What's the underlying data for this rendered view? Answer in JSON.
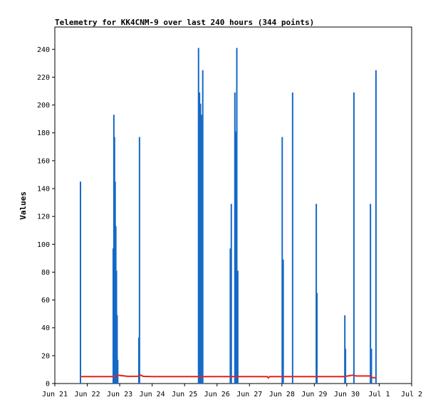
{
  "chart_data": {
    "type": "bar",
    "title": "Telemetry for KK4CNM-9 over last 240 hours (344 points)",
    "xlabel": "",
    "ylabel": "Values",
    "x_axis": {
      "unit": "days since Jun 21 00:00",
      "range": [
        0,
        11
      ],
      "ticks": [
        {
          "label": "Jun 21",
          "day": 0
        },
        {
          "label": "Jun 22",
          "day": 1
        },
        {
          "label": "Jun 23",
          "day": 2
        },
        {
          "label": "Jun 24",
          "day": 3
        },
        {
          "label": "Jun 25",
          "day": 4
        },
        {
          "label": "Jun 26",
          "day": 5
        },
        {
          "label": "Jun 27",
          "day": 6
        },
        {
          "label": "Jun 28",
          "day": 7
        },
        {
          "label": "Jun 29",
          "day": 8
        },
        {
          "label": "Jun 30",
          "day": 9
        },
        {
          "label": "Jul 1",
          "day": 10
        },
        {
          "label": "Jul 2",
          "day": 11
        }
      ]
    },
    "y_axis": {
      "range": [
        0,
        256
      ],
      "ticks": [
        0,
        20,
        40,
        60,
        80,
        100,
        120,
        140,
        160,
        180,
        200,
        220,
        240
      ]
    },
    "grid": false,
    "series": [
      {
        "kind": "bar",
        "color": "#1569c7",
        "points": [
          {
            "x": 0.79,
            "y": 145
          },
          {
            "x": 1.8,
            "y": 97
          },
          {
            "x": 1.82,
            "y": 193
          },
          {
            "x": 1.84,
            "y": 177
          },
          {
            "x": 1.86,
            "y": 145
          },
          {
            "x": 1.88,
            "y": 113
          },
          {
            "x": 1.9,
            "y": 81
          },
          {
            "x": 1.92,
            "y": 49
          },
          {
            "x": 1.94,
            "y": 17
          },
          {
            "x": 2.59,
            "y": 33
          },
          {
            "x": 2.61,
            "y": 177
          },
          {
            "x": 4.43,
            "y": 241
          },
          {
            "x": 4.46,
            "y": 209
          },
          {
            "x": 4.49,
            "y": 201
          },
          {
            "x": 4.52,
            "y": 193
          },
          {
            "x": 4.56,
            "y": 225
          },
          {
            "x": 5.41,
            "y": 97
          },
          {
            "x": 5.44,
            "y": 129
          },
          {
            "x": 5.55,
            "y": 209
          },
          {
            "x": 5.58,
            "y": 181
          },
          {
            "x": 5.61,
            "y": 241
          },
          {
            "x": 5.64,
            "y": 81
          },
          {
            "x": 7.01,
            "y": 177
          },
          {
            "x": 7.04,
            "y": 89
          },
          {
            "x": 7.33,
            "y": 209
          },
          {
            "x": 8.06,
            "y": 129
          },
          {
            "x": 8.08,
            "y": 65
          },
          {
            "x": 8.94,
            "y": 49
          },
          {
            "x": 8.96,
            "y": 25
          },
          {
            "x": 9.22,
            "y": 209
          },
          {
            "x": 9.73,
            "y": 129
          },
          {
            "x": 9.76,
            "y": 25
          },
          {
            "x": 9.9,
            "y": 225
          }
        ]
      },
      {
        "kind": "line",
        "color": "#e3241b",
        "points": [
          [
            0.79,
            5
          ],
          [
            1.85,
            5
          ],
          [
            1.95,
            6
          ],
          [
            2.05,
            5.7
          ],
          [
            2.25,
            5.2
          ],
          [
            2.55,
            5.2
          ],
          [
            2.65,
            6
          ],
          [
            2.72,
            5.2
          ],
          [
            3.0,
            5
          ],
          [
            4.43,
            5
          ],
          [
            5.4,
            5
          ],
          [
            6.55,
            5
          ],
          [
            6.58,
            4
          ],
          [
            6.62,
            5
          ],
          [
            7.3,
            5
          ],
          [
            8.9,
            5
          ],
          [
            9.05,
            5.5
          ],
          [
            9.18,
            6
          ],
          [
            9.3,
            5.4
          ],
          [
            9.72,
            5.4
          ],
          [
            9.8,
            4.2
          ],
          [
            9.92,
            4.2
          ]
        ]
      }
    ]
  }
}
